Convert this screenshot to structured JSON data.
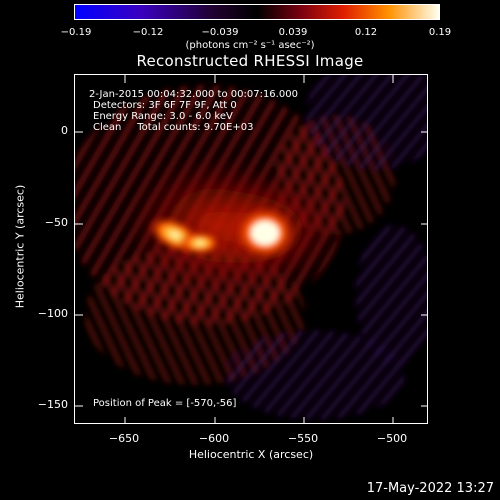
{
  "colorbar": {
    "ticks": [
      "−0.19",
      "−0.12",
      "−0.039",
      "0.039",
      "0.12",
      "0.19"
    ],
    "units_label": "(photons cm⁻² s⁻¹ asec⁻²)"
  },
  "title": "Reconstructed RHESSI Image",
  "info": {
    "line1": "2-Jan-2015 00:04:32.000 to 00:07:16.000",
    "line2": "Detectors: 3F 6F 7F 9F, Att 0",
    "line3": "Energy Range: 3.0 - 6.0 keV",
    "line4": "Clean     Total counts: 9.70E+03",
    "peak": "Position of Peak = [-570,-56]"
  },
  "axes": {
    "xlabel": "Heliocentric X (arcsec)",
    "ylabel": "Heliocentric Y (arcsec)",
    "xticks": [
      "−650",
      "−600",
      "−550",
      "−500"
    ],
    "yticks": [
      "0",
      "−50",
      "−100",
      "−150"
    ]
  },
  "datestamp": "17-May-2022 13:27",
  "colors": {
    "cmap_low": "#0000ff",
    "cmap_mid": "#000000",
    "cmap_red": "#d01010",
    "cmap_orange": "#ff8c00",
    "cmap_high": "#ffffd0"
  }
}
